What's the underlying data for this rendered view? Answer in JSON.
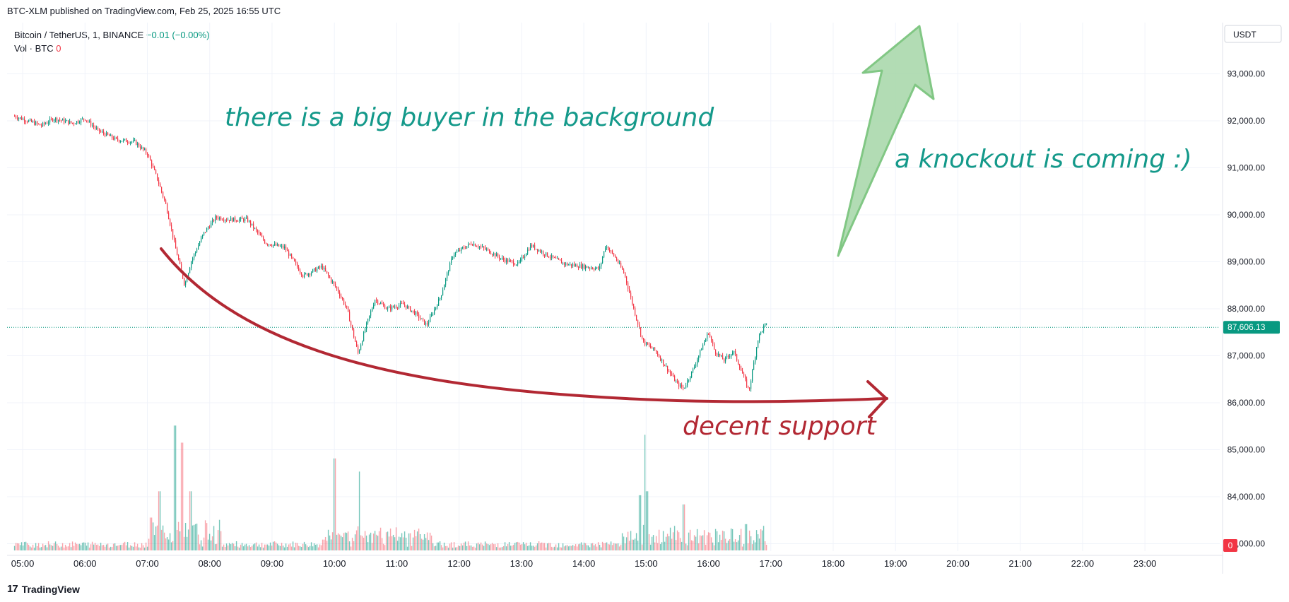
{
  "header": {
    "published": "BTC-XLM published on TradingView.com, Feb 25, 2025 16:55 UTC"
  },
  "legend": {
    "symbol": "Bitcoin / TetherUS, 1, BINANCE",
    "change": "−0.01 (−0.00%)",
    "volume_label": "Vol · BTC",
    "volume_value": "0"
  },
  "currency": "USDT",
  "footer": {
    "brand": "TradingView",
    "logo": "17"
  },
  "colors": {
    "up": "#089981",
    "down": "#f23645",
    "support_curve": "#b22833",
    "arrow_fill": "#a5d6a7",
    "arrow_stroke": "#81c784",
    "annotation_green": "#14998a",
    "annotation_red": "#b22833",
    "grid": "#f0f3fa"
  },
  "annotations": {
    "buyer": "there is a big buyer in the background",
    "knockout": "a knockout is coming :)",
    "support": "decent support"
  },
  "chart_data": {
    "type": "candlestick",
    "symbol": "BTCUSDT",
    "interval": "1",
    "x_ticks": [
      "05:00",
      "06:00",
      "07:00",
      "08:00",
      "09:00",
      "10:00",
      "11:00",
      "12:00",
      "13:00",
      "14:00",
      "15:00",
      "16:00",
      "17:00",
      "18:00",
      "19:00",
      "20:00",
      "21:00",
      "22:00",
      "23:00"
    ],
    "y_ticks": [
      "93,000.00",
      "92,000.00",
      "91,000.00",
      "90,000.00",
      "89,000.00",
      "88,000.00",
      "87,000.00",
      "86,000.00",
      "85,000.00",
      "84,000.00",
      "83,000.00"
    ],
    "ylim": [
      82800,
      93800
    ],
    "last_price": 87606.13,
    "last_price_label": "87,606.13",
    "volume_axis_label": "0",
    "price_path": [
      [
        4.87,
        92100
      ],
      [
        5.3,
        91900
      ],
      [
        5.5,
        92050
      ],
      [
        5.8,
        91950
      ],
      [
        6.0,
        92050
      ],
      [
        6.2,
        91800
      ],
      [
        6.5,
        91600
      ],
      [
        6.8,
        91550
      ],
      [
        7.0,
        91300
      ],
      [
        7.15,
        90800
      ],
      [
        7.3,
        90200
      ],
      [
        7.45,
        89300
      ],
      [
        7.6,
        88500
      ],
      [
        7.7,
        89000
      ],
      [
        7.9,
        89600
      ],
      [
        8.1,
        89950
      ],
      [
        8.3,
        89900
      ],
      [
        8.6,
        89900
      ],
      [
        8.9,
        89400
      ],
      [
        9.2,
        89300
      ],
      [
        9.5,
        88700
      ],
      [
        9.8,
        88900
      ],
      [
        10.05,
        88400
      ],
      [
        10.2,
        88000
      ],
      [
        10.38,
        87050
      ],
      [
        10.5,
        87600
      ],
      [
        10.65,
        88200
      ],
      [
        10.85,
        88000
      ],
      [
        11.1,
        88100
      ],
      [
        11.3,
        87900
      ],
      [
        11.48,
        87650
      ],
      [
        11.7,
        88250
      ],
      [
        11.9,
        89150
      ],
      [
        12.2,
        89400
      ],
      [
        12.45,
        89250
      ],
      [
        12.7,
        89050
      ],
      [
        12.95,
        88950
      ],
      [
        13.15,
        89350
      ],
      [
        13.4,
        89150
      ],
      [
        13.7,
        88950
      ],
      [
        14.0,
        88900
      ],
      [
        14.25,
        88850
      ],
      [
        14.35,
        89350
      ],
      [
        14.5,
        89100
      ],
      [
        14.65,
        88750
      ],
      [
        14.8,
        88000
      ],
      [
        14.95,
        87300
      ],
      [
        15.15,
        87100
      ],
      [
        15.3,
        86800
      ],
      [
        15.5,
        86400
      ],
      [
        15.6,
        86300
      ],
      [
        15.75,
        86700
      ],
      [
        15.9,
        87200
      ],
      [
        16.0,
        87500
      ],
      [
        16.1,
        87100
      ],
      [
        16.25,
        86900
      ],
      [
        16.4,
        87100
      ],
      [
        16.55,
        86600
      ],
      [
        16.65,
        86250
      ],
      [
        16.72,
        86800
      ],
      [
        16.8,
        87400
      ],
      [
        16.9,
        87650
      ]
    ],
    "volume_spikes": [
      [
        7.05,
        0.25
      ],
      [
        7.2,
        0.45
      ],
      [
        7.45,
        0.95
      ],
      [
        7.55,
        0.82
      ],
      [
        7.7,
        0.45
      ],
      [
        10.0,
        0.7
      ],
      [
        10.4,
        0.6
      ],
      [
        14.9,
        0.42
      ],
      [
        15.0,
        0.88
      ],
      [
        15.02,
        0.45
      ],
      [
        15.6,
        0.35
      ],
      [
        16.6,
        0.2
      ]
    ]
  }
}
